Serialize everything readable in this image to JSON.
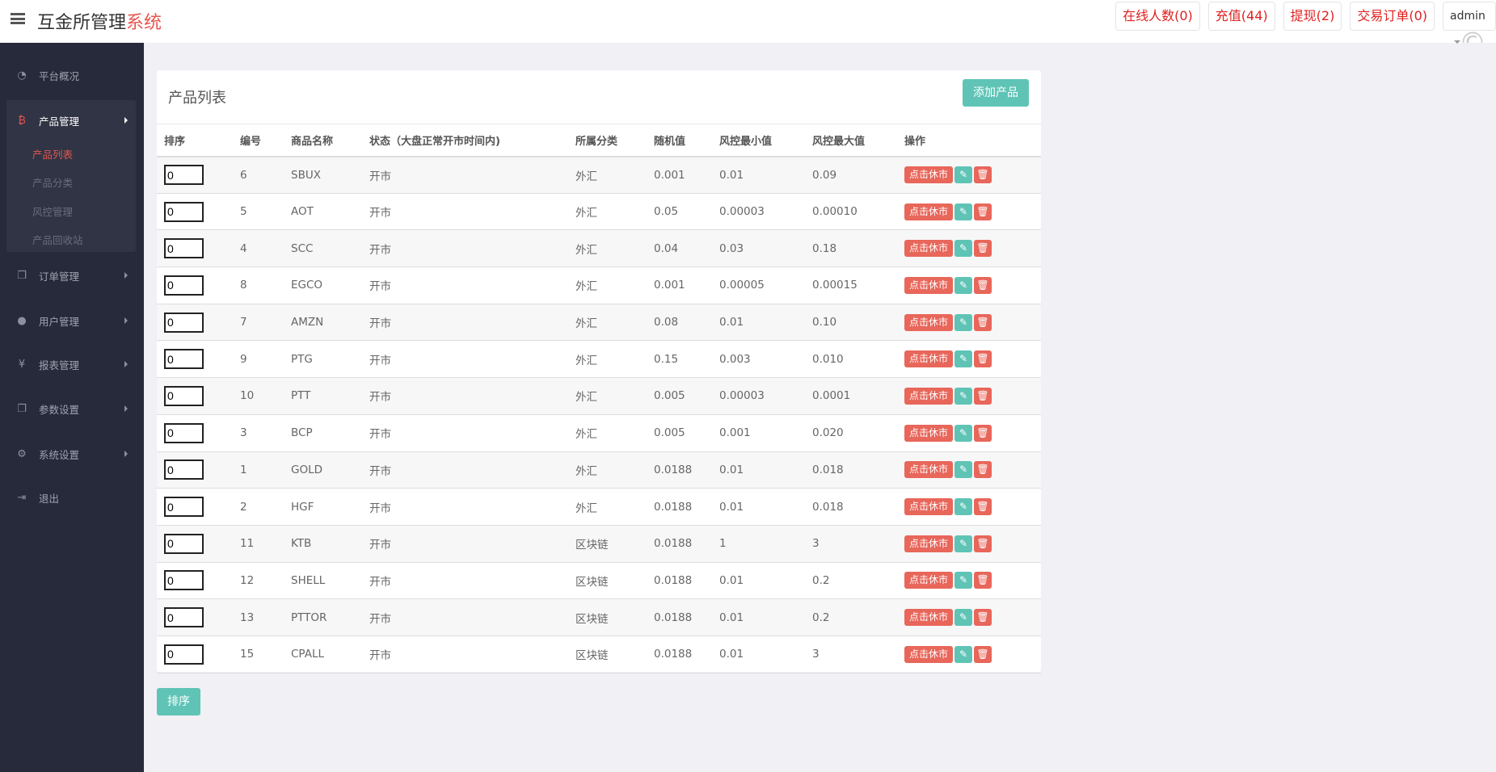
{
  "header": {
    "brand_main": "互金所管理",
    "brand_accent": "系统",
    "buttons": [
      "在线人数(0)",
      "充值(44)",
      "提现(2)",
      "交易订单(0)"
    ],
    "user": "admin"
  },
  "sidebar": {
    "items": [
      {
        "label": "平台概况",
        "icon": "dashboard-icon"
      },
      {
        "label": "产品管理",
        "icon": "bitcoin-icon",
        "active": true
      },
      {
        "label": "订单管理",
        "icon": "copy-icon"
      },
      {
        "label": "用户管理",
        "icon": "user-icon"
      },
      {
        "label": "报表管理",
        "icon": "yen-icon"
      },
      {
        "label": "参数设置",
        "icon": "copy-icon"
      },
      {
        "label": "系统设置",
        "icon": "gears-icon"
      },
      {
        "label": "退出",
        "icon": "sign-out-icon"
      }
    ],
    "subitems": [
      "产品列表",
      "产品分类",
      "风控管理",
      "产品回收站"
    ]
  },
  "panel": {
    "title": "产品列表",
    "add_label": "添加产品",
    "columns": [
      "排序",
      "编号",
      "商品名称",
      "状态（大盘正常开市时间内)",
      "所属分类",
      "随机值",
      "风控最小值",
      "风控最大值",
      "操作"
    ],
    "rows": [
      {
        "sort": "0",
        "id": "6",
        "name": "SBUX",
        "status": "开市",
        "cat": "外汇",
        "rand": "0.001",
        "min": "0.01",
        "max": "0.09"
      },
      {
        "sort": "0",
        "id": "5",
        "name": "AOT",
        "status": "开市",
        "cat": "外汇",
        "rand": "0.05",
        "min": "0.00003",
        "max": "0.00010"
      },
      {
        "sort": "0",
        "id": "4",
        "name": "SCC",
        "status": "开市",
        "cat": "外汇",
        "rand": "0.04",
        "min": "0.03",
        "max": "0.18"
      },
      {
        "sort": "0",
        "id": "8",
        "name": "EGCO",
        "status": "开市",
        "cat": "外汇",
        "rand": "0.001",
        "min": "0.00005",
        "max": "0.00015"
      },
      {
        "sort": "0",
        "id": "7",
        "name": "AMZN",
        "status": "开市",
        "cat": "外汇",
        "rand": "0.08",
        "min": "0.01",
        "max": "0.10"
      },
      {
        "sort": "0",
        "id": "9",
        "name": "PTG",
        "status": "开市",
        "cat": "外汇",
        "rand": "0.15",
        "min": "0.003",
        "max": "0.010"
      },
      {
        "sort": "0",
        "id": "10",
        "name": "PTT",
        "status": "开市",
        "cat": "外汇",
        "rand": "0.005",
        "min": "0.00003",
        "max": "0.0001"
      },
      {
        "sort": "0",
        "id": "3",
        "name": "BCP",
        "status": "开市",
        "cat": "外汇",
        "rand": "0.005",
        "min": "0.001",
        "max": "0.020"
      },
      {
        "sort": "0",
        "id": "1",
        "name": "GOLD",
        "status": "开市",
        "cat": "外汇",
        "rand": "0.0188",
        "min": "0.01",
        "max": "0.018"
      },
      {
        "sort": "0",
        "id": "2",
        "name": "HGF",
        "status": "开市",
        "cat": "外汇",
        "rand": "0.0188",
        "min": "0.01",
        "max": "0.018"
      },
      {
        "sort": "0",
        "id": "11",
        "name": "KTB",
        "status": "开市",
        "cat": "区块链",
        "rand": "0.0188",
        "min": "1",
        "max": "3"
      },
      {
        "sort": "0",
        "id": "12",
        "name": "SHELL",
        "status": "开市",
        "cat": "区块链",
        "rand": "0.0188",
        "min": "0.01",
        "max": "0.2"
      },
      {
        "sort": "0",
        "id": "13",
        "name": "PTTOR",
        "status": "开市",
        "cat": "区块链",
        "rand": "0.0188",
        "min": "0.01",
        "max": "0.2"
      },
      {
        "sort": "0",
        "id": "15",
        "name": "CPALL",
        "status": "开市",
        "cat": "区块链",
        "rand": "0.0188",
        "min": "0.01",
        "max": "3"
      }
    ],
    "close_label": "点击休市"
  },
  "sort_button": "排序"
}
